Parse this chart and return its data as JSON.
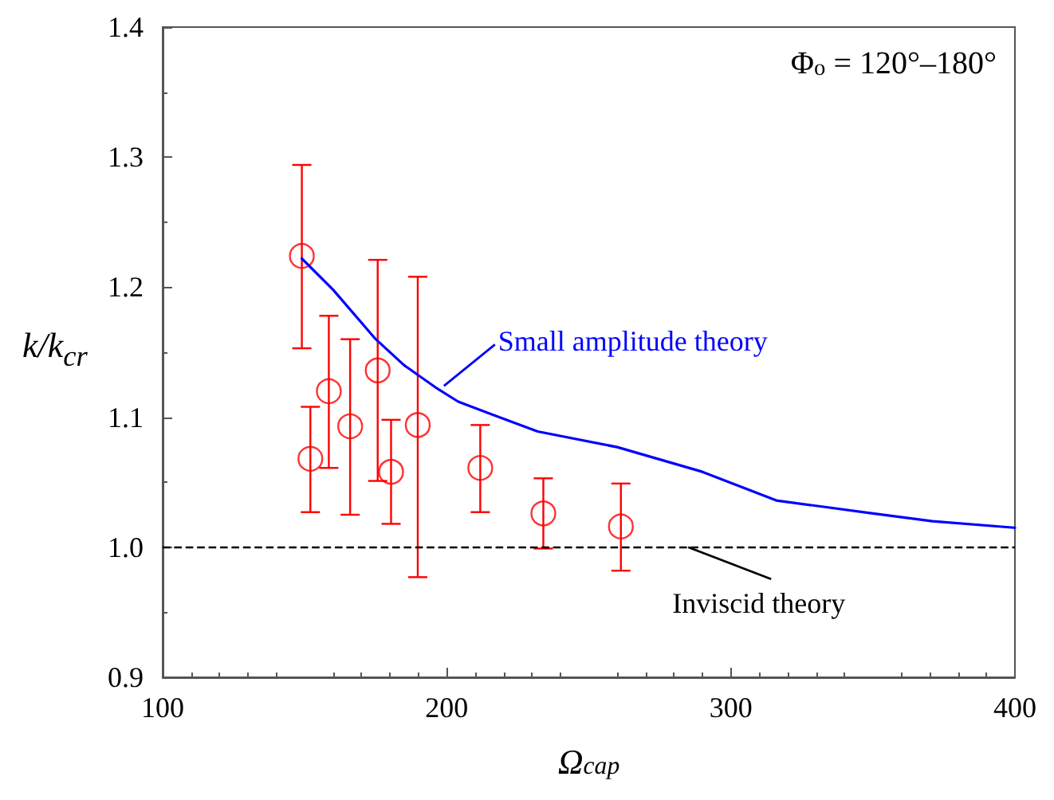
{
  "chart_data": {
    "type": "scatter",
    "xlabel": "Ω$_{cap}$",
    "ylabel": "k/k$_{cr}$",
    "annotations": [
      "Φ$_{o}$ = 120°–180°",
      {
        "text": "Small amplitude theory",
        "x": 199,
        "y": 1.124
      },
      {
        "text": "Inviscid theory",
        "x": 285,
        "y": 1.0
      }
    ],
    "xlim": [
      100,
      400
    ],
    "xticks": [
      100,
      200,
      300,
      400
    ],
    "ylim": [
      0.9,
      1.4
    ],
    "yticks": [
      {
        "value": 0.9,
        "label": "0.9"
      },
      {
        "value": 1.0,
        "label": "1.0"
      },
      1.1,
      1.2,
      1.3,
      1.4
    ],
    "series": [
      {
        "color": "#ff0000",
        "marker": "circle",
        "x": [
          149,
          152,
          158.5,
          166,
          175.7,
          180.4,
          189.8,
          211.8,
          234,
          261.3
        ],
        "values": [
          1.224,
          1.068,
          1.12,
          1.093,
          1.136,
          1.058,
          1.094,
          1.061,
          1.026,
          1.016
        ],
        "errors": [
          [
            1.153,
            1.294
          ],
          [
            1.027,
            1.108
          ],
          [
            1.061,
            1.178
          ],
          [
            1.025,
            1.16
          ],
          [
            1.051,
            1.221
          ],
          [
            1.018,
            1.098
          ],
          [
            0.977,
            1.208
          ],
          [
            1.027,
            1.094
          ],
          [
            0.999,
            1.053
          ],
          [
            0.982,
            1.049
          ]
        ]
      },
      {
        "type": "line",
        "color": "#0000ff",
        "marker": "none",
        "line_style": "solid",
        "x": [
          149,
          160,
          175,
          185,
          196,
          204,
          216,
          232,
          260,
          290,
          316,
          350,
          371,
          400
        ],
        "values": [
          1.222,
          1.198,
          1.16,
          1.14,
          1.123,
          1.112,
          1.102,
          1.089,
          1.077,
          1.058,
          1.036,
          1.026,
          1.02,
          1.015
        ]
      }
    ],
    "ref_lines": [
      {
        "axis": "y",
        "value": 1.0,
        "label": null,
        "color": "#000000",
        "line_style": "dashed"
      }
    ],
    "grid": false
  }
}
